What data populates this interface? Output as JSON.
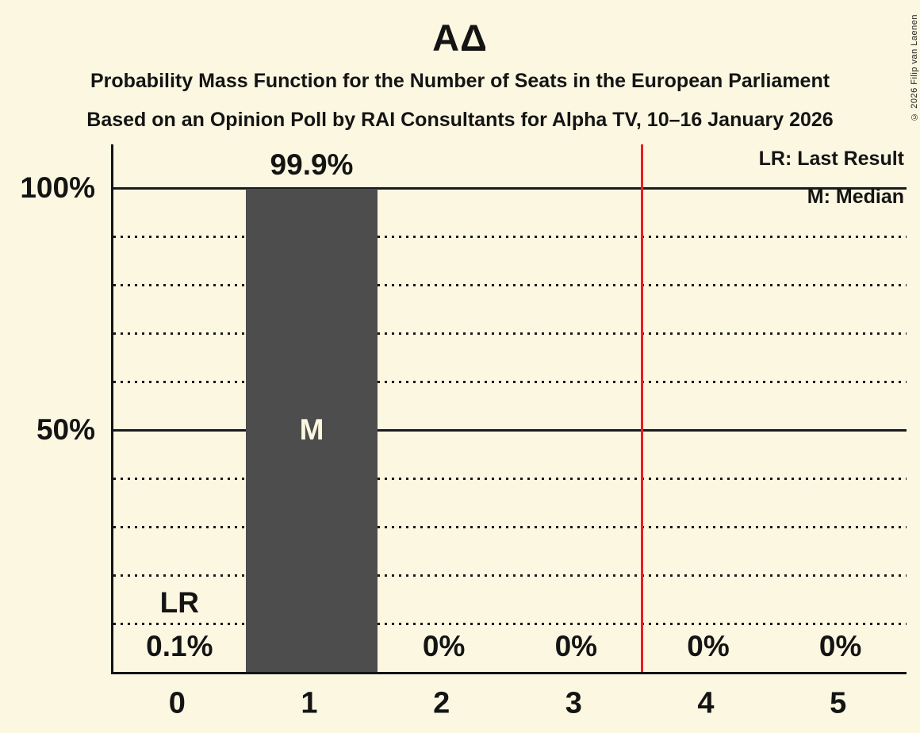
{
  "chart_data": {
    "type": "bar",
    "title": "ΑΔ",
    "subtitle": "Probability Mass Function for the Number of Seats in the European Parliament",
    "subsubtitle": "Based on an Opinion Poll by RAI Consultants for Alpha TV, 10–16 January 2026",
    "categories": [
      "0",
      "1",
      "2",
      "3",
      "4",
      "5"
    ],
    "values": [
      0.1,
      99.9,
      0,
      0,
      0,
      0
    ],
    "value_labels": [
      "0.1%",
      "99.9%",
      "0%",
      "0%",
      "0%",
      "0%"
    ],
    "xlabel": "",
    "ylabel": "",
    "ylim": [
      0,
      109
    ],
    "yticks": [
      {
        "value": 50,
        "label": "50%"
      },
      {
        "value": 100,
        "label": "100%"
      }
    ],
    "gridlines_pct": [
      10,
      20,
      30,
      40,
      50,
      60,
      70,
      80,
      90,
      100
    ],
    "grid": "horizontal, dotted minor at every 10%, solid at 50% and 100%",
    "legend_position": "top-right",
    "legend": [
      {
        "label": "LR: Last Result"
      },
      {
        "label": "M: Median"
      }
    ],
    "annotations": {
      "median_marker": "M",
      "median_category": "1",
      "last_result_marker": "LR",
      "last_result_category": "0",
      "threshold_line_at_x": 3.5
    },
    "colors": {
      "background": "#fcf7e1",
      "bar": "#4d4d4d",
      "threshold_line": "#ed1c24",
      "text": "#141414"
    },
    "copyright": "© 2026 Filip van Laenen"
  }
}
